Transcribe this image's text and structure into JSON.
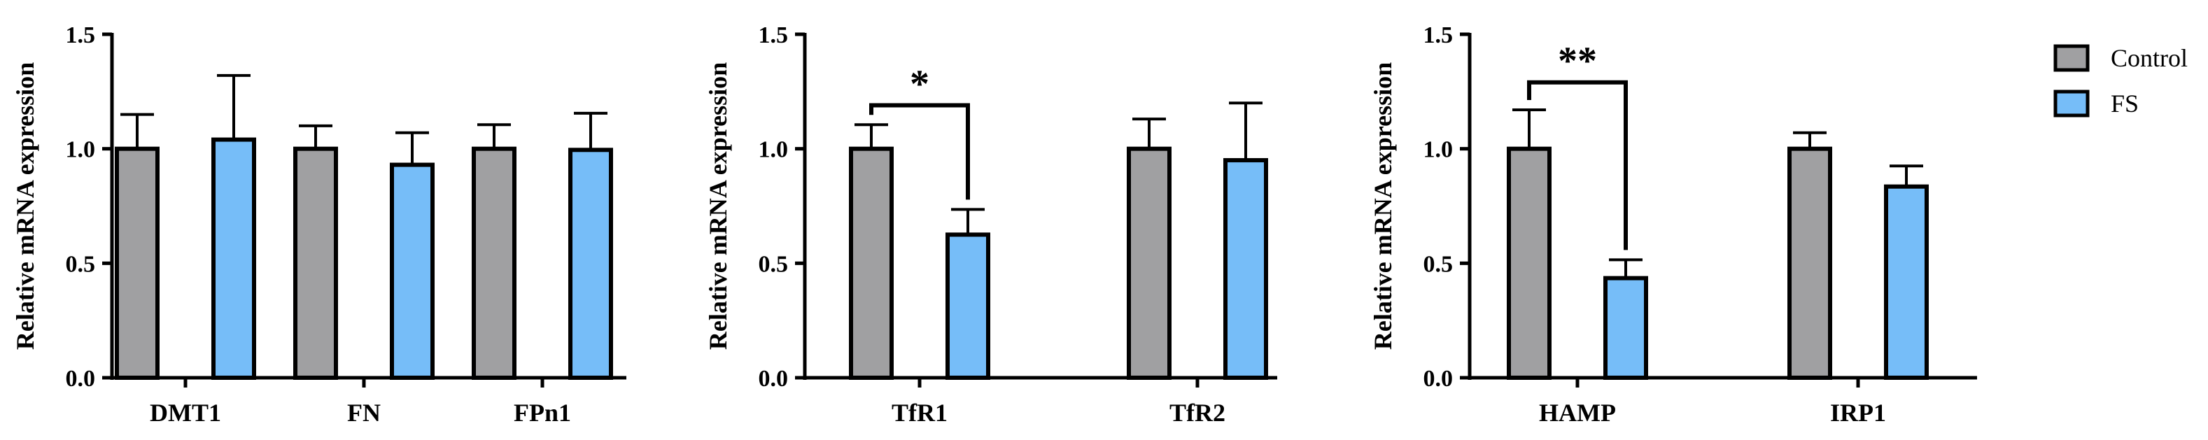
{
  "legend": [
    {
      "name": "Control",
      "color": "#a0a0a2"
    },
    {
      "name": "FS",
      "color": "#76bdf8"
    }
  ],
  "chart_data": [
    {
      "type": "bar",
      "ylabel": "Relative mRNA expression",
      "ylim": [
        0,
        1.5
      ],
      "yticks": [
        "0.0",
        "0.5",
        "1.0",
        "1.5"
      ],
      "categories": [
        "DMT1",
        "FN",
        "FPn1"
      ],
      "series": [
        {
          "name": "Control",
          "values": [
            1.0,
            1.0,
            1.0
          ],
          "errors": [
            0.15,
            0.1,
            0.105
          ]
        },
        {
          "name": "FS",
          "values": [
            1.04,
            0.93,
            0.995
          ],
          "errors": [
            0.28,
            0.14,
            0.16
          ]
        }
      ],
      "significance": []
    },
    {
      "type": "bar",
      "ylabel": "Relative mRNA expression",
      "ylim": [
        0,
        1.5
      ],
      "yticks": [
        "0.0",
        "0.5",
        "1.0",
        "1.5"
      ],
      "categories": [
        "TfR1",
        "TfR2"
      ],
      "series": [
        {
          "name": "Control",
          "values": [
            1.0,
            1.0
          ],
          "errors": [
            0.105,
            0.13
          ]
        },
        {
          "name": "FS",
          "values": [
            0.625,
            0.95
          ],
          "errors": [
            0.11,
            0.25
          ]
        }
      ],
      "significance": [
        {
          "category": 0,
          "label": "*",
          "y": 1.19
        }
      ]
    },
    {
      "type": "bar",
      "ylabel": "Relative mRNA expression",
      "ylim": [
        0,
        1.5
      ],
      "yticks": [
        "0.0",
        "0.5",
        "1.0",
        "1.5"
      ],
      "categories": [
        "HAMP",
        "IRP1"
      ],
      "series": [
        {
          "name": "Control",
          "values": [
            1.0,
            1.0
          ],
          "errors": [
            0.17,
            0.07
          ]
        },
        {
          "name": "FS",
          "values": [
            0.435,
            0.835
          ],
          "errors": [
            0.08,
            0.09
          ]
        }
      ],
      "significance": [
        {
          "category": 0,
          "label": "**",
          "y": 1.29
        }
      ]
    }
  ]
}
